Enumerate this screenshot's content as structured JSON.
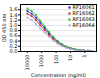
{
  "chart_data": {
    "type": "line",
    "title": "",
    "xlabel": "Concentration (ng/ml)",
    "ylabel": "OD 450 nm",
    "x": [
      10000,
      5000,
      2500,
      1250,
      625,
      312.5,
      156.25,
      78.125,
      39.06,
      19.53,
      9.77,
      4.88,
      2.44,
      1.22,
      0.61,
      0.31
    ],
    "series": [
      {
        "name": "RF16061",
        "color": "#2222cc",
        "marker": "square",
        "values": [
          1.55,
          1.45,
          1.3,
          1.1,
          0.9,
          0.7,
          0.52,
          0.38,
          0.26,
          0.18,
          0.12,
          0.08,
          0.06,
          0.04,
          0.03,
          0.02
        ]
      },
      {
        "name": "RF16062",
        "color": "#cc2222",
        "marker": "square",
        "values": [
          1.45,
          1.35,
          1.2,
          1.0,
          0.82,
          0.64,
          0.47,
          0.34,
          0.23,
          0.16,
          0.1,
          0.07,
          0.05,
          0.04,
          0.03,
          0.02
        ]
      },
      {
        "name": "RF16063",
        "color": "#22bb22",
        "marker": "square",
        "values": [
          1.65,
          1.55,
          1.4,
          1.18,
          0.96,
          0.75,
          0.56,
          0.4,
          0.28,
          0.19,
          0.13,
          0.09,
          0.06,
          0.04,
          0.03,
          0.02
        ]
      },
      {
        "name": "RF16064",
        "color": "#aaaaee",
        "marker": "square",
        "values": [
          1.3,
          1.2,
          1.05,
          0.88,
          0.72,
          0.56,
          0.42,
          0.3,
          0.21,
          0.14,
          0.09,
          0.06,
          0.04,
          0.03,
          0.02,
          0.02
        ]
      }
    ],
    "log": "x",
    "xlim": [
      30000,
      0.155
    ],
    "xticks": [
      1,
      10,
      100,
      1000,
      10000
    ],
    "ylim": [
      0,
      1.8
    ],
    "yticks": [
      {
        "value": 0.0,
        "label": "0.0"
      },
      0.2,
      0.4,
      0.6,
      0.8,
      {
        "value": 1.0,
        "label": "1.0"
      },
      1.2,
      1.4,
      1.6
    ],
    "grid": "y",
    "legend": "upper right"
  }
}
